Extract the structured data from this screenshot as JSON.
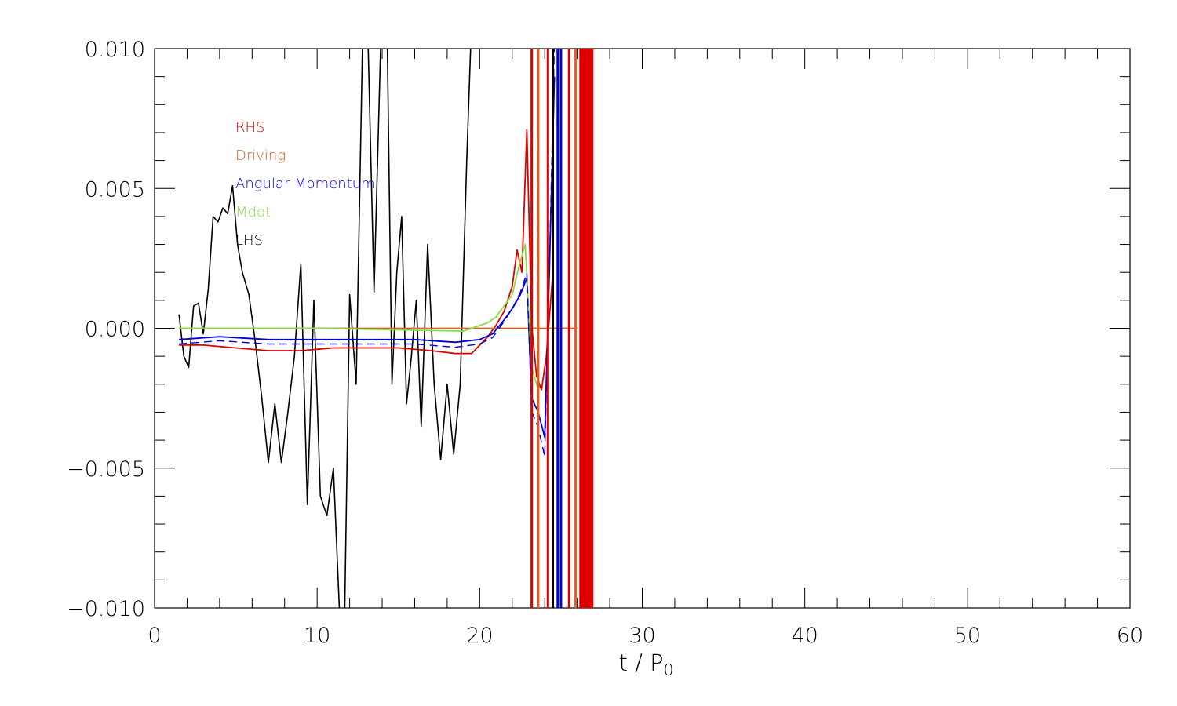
{
  "chart_data": {
    "type": "line",
    "xlabel": "t / P",
    "xlabel_subscript": "0",
    "xlim": [
      0,
      60
    ],
    "ylim": [
      -0.01,
      0.01
    ],
    "x_ticks": [
      "0",
      "10",
      "20",
      "30",
      "40",
      "50",
      "60"
    ],
    "y_ticks": [
      "0.010",
      "0.005",
      "0.000",
      "−0.005",
      "−0.010"
    ],
    "y_tick_values": [
      0.01,
      0.005,
      0.0,
      -0.005,
      -0.01
    ],
    "x_tick_values": [
      0,
      10,
      20,
      30,
      40,
      50,
      60
    ],
    "grid": false,
    "legend_position": "top-left",
    "legend": [
      {
        "label": "RHS",
        "color": "#dd0000"
      },
      {
        "label": "Driving",
        "color": "#e06020"
      },
      {
        "label": "Angular Momentum",
        "color": "#0000dd"
      },
      {
        "label": "Mdot",
        "color": "#88dd44"
      },
      {
        "label": "LHS",
        "color": "#000000"
      }
    ],
    "series": [
      {
        "name": "LHS",
        "color": "#000000",
        "x": [
          1.5,
          1.8,
          2.1,
          2.4,
          2.7,
          3.0,
          3.3,
          3.6,
          3.9,
          4.2,
          4.5,
          4.8,
          5.1,
          5.4,
          5.8,
          6.2,
          6.6,
          7.0,
          7.4,
          7.8,
          8.2,
          8.6,
          9.0,
          9.4,
          9.8,
          10.2,
          10.6,
          11.0,
          11.4,
          11.7,
          12.0,
          12.4,
          12.8,
          13.1,
          13.5,
          13.9,
          14.3,
          14.6,
          14.9,
          15.2,
          15.5,
          15.8,
          16.1,
          16.4,
          16.8,
          17.2,
          17.6,
          18.0,
          18.4,
          18.8,
          19.2,
          19.5
        ],
        "y": [
          0.0005,
          -0.001,
          -0.0014,
          0.0008,
          0.0009,
          -0.0002,
          0.0014,
          0.004,
          0.0038,
          0.0043,
          0.0041,
          0.0051,
          0.003,
          0.002,
          0.0012,
          -0.0005,
          -0.0025,
          -0.0048,
          -0.0027,
          -0.0048,
          -0.003,
          -0.001,
          0.0023,
          -0.0063,
          0.001,
          -0.006,
          -0.0067,
          -0.005,
          -0.0105,
          -0.01,
          0.0012,
          -0.002,
          0.0105,
          0.011,
          0.0013,
          0.01,
          0.011,
          -0.002,
          0.002,
          0.004,
          -0.0027,
          -0.001,
          0.001,
          -0.0035,
          0.003,
          -0.002,
          -0.0047,
          -0.002,
          -0.0045,
          -0.002,
          0.006,
          0.011
        ]
      },
      {
        "name": "RHS",
        "color": "#dd0000",
        "x": [
          1.5,
          3.0,
          5.0,
          7.0,
          9.0,
          11.0,
          13.0,
          15.0,
          17.0,
          18.5,
          19.5,
          20.5,
          21.0,
          21.5,
          22.0,
          22.3,
          22.6,
          22.9,
          23.2,
          23.5,
          23.8,
          24.1,
          24.5
        ],
        "y": [
          -0.0006,
          -0.0006,
          -0.0007,
          -0.0008,
          -0.0008,
          -0.0007,
          -0.0007,
          -0.0007,
          -0.0008,
          -0.0009,
          -0.0009,
          -0.0003,
          0.0001,
          0.0006,
          0.0015,
          0.0028,
          0.002,
          0.0071,
          0.0001,
          -0.0017,
          -0.0022,
          -0.001,
          0.002
        ]
      },
      {
        "name": "Driving",
        "color": "#e06020",
        "x": [
          1.5,
          10.0,
          20.0,
          26.0
        ],
        "y": [
          0.0,
          0.0,
          0.0,
          0.0
        ]
      },
      {
        "name": "Angular Momentum",
        "color": "#0000dd",
        "x": [
          1.5,
          4.0,
          7.0,
          10.0,
          13.0,
          16.0,
          18.5,
          20.0,
          20.8,
          21.5,
          22.0,
          22.5,
          22.9,
          23.2,
          23.6,
          24.0,
          24.3,
          24.6
        ],
        "y": [
          -0.0004,
          -0.0003,
          -0.0004,
          -0.0004,
          -0.0004,
          -0.0004,
          -0.0005,
          -0.0004,
          -0.0002,
          0.0003,
          0.0007,
          0.0012,
          0.0018,
          -0.0025,
          -0.003,
          -0.0039,
          0.0023,
          0.009
        ]
      },
      {
        "name": "Mdot",
        "color": "#88dd44",
        "x": [
          1.5,
          10.0,
          19.0,
          20.5,
          21.0,
          21.5,
          22.0,
          22.4,
          22.8,
          23.2,
          23.6
        ],
        "y": [
          0.0,
          0.0,
          -0.0001,
          0.0002,
          0.0004,
          0.0008,
          0.0012,
          0.0022,
          0.003,
          -0.0014,
          -0.0022
        ]
      }
    ]
  },
  "legend_icons": {
    "style": "text-only"
  }
}
